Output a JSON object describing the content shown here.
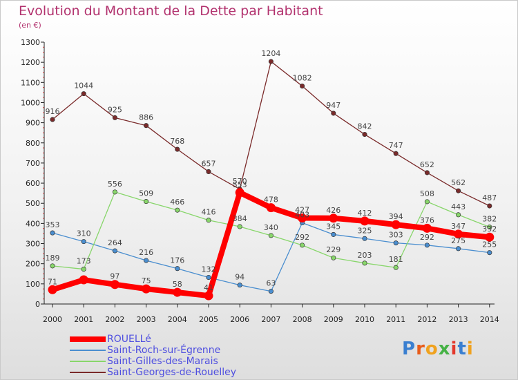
{
  "header": {
    "title": "Evolution du Montant de la Dette par Habitant",
    "subtitle": "(en €)"
  },
  "logo": {
    "text": "Proxiti",
    "colors": [
      "#3a7fd0",
      "#e85c1a",
      "#f0a21e",
      "#45b245",
      "#e3382c",
      "#3a7fd0",
      "#f0a21e"
    ]
  },
  "chart_data": {
    "type": "line",
    "title": "Evolution du Montant de la Dette par Habitant",
    "subtitle": "(en €)",
    "xlabel": "",
    "ylabel": "",
    "x": [
      "2000",
      "2001",
      "2002",
      "2003",
      "2004",
      "2005",
      "2006",
      "2007",
      "2008",
      "2009",
      "2010",
      "2011",
      "2012",
      "2013",
      "2014"
    ],
    "ylim": [
      0,
      1300
    ],
    "yticks": [
      0,
      100,
      200,
      300,
      400,
      500,
      600,
      700,
      800,
      900,
      1000,
      1100,
      1200,
      1300
    ],
    "grid": false,
    "legend_position": "bottom-left",
    "series": [
      {
        "name": "ROUELLé",
        "color": "#ff0000",
        "highlight": true,
        "values": [
          71,
          120,
          97,
          75,
          58,
          41,
          553,
          478,
          427,
          426,
          412,
          394,
          376,
          347,
          332
        ],
        "labels": [
          "71",
          "",
          "97",
          "75",
          "58",
          "41",
          "553",
          "478",
          "427",
          "426",
          "412",
          "394",
          "376",
          "347",
          "332"
        ]
      },
      {
        "name": "Saint-Roch-sur-Égrenne",
        "color": "#4a8ecf",
        "values": [
          353,
          310,
          264,
          216,
          176,
          132,
          94,
          63,
          403,
          345,
          325,
          303,
          292,
          275,
          255
        ],
        "labels": [
          "353",
          "310",
          "264",
          "216",
          "176",
          "132",
          "94",
          "63",
          "403",
          "345",
          "325",
          "303",
          "292",
          "275",
          "255"
        ]
      },
      {
        "name": "Saint-Gilles-des-Marais",
        "color": "#88d66b",
        "values": [
          189,
          173,
          556,
          509,
          466,
          416,
          384,
          340,
          292,
          229,
          203,
          181,
          508,
          443,
          382
        ],
        "labels": [
          "189",
          "173",
          "556",
          "509",
          "466",
          "416",
          "384",
          "340",
          "292",
          "229",
          "203",
          "181",
          "508",
          "443",
          "382"
        ]
      },
      {
        "name": "Saint-Georges-de-Rouelley",
        "color": "#7a2a2a",
        "values": [
          916,
          1044,
          925,
          886,
          768,
          657,
          570,
          1204,
          1082,
          947,
          842,
          747,
          652,
          562,
          487
        ],
        "labels": [
          "916",
          "1044",
          "925",
          "886",
          "768",
          "657",
          "570",
          "1204",
          "1082",
          "947",
          "842",
          "747",
          "652",
          "562",
          "487"
        ]
      }
    ]
  }
}
